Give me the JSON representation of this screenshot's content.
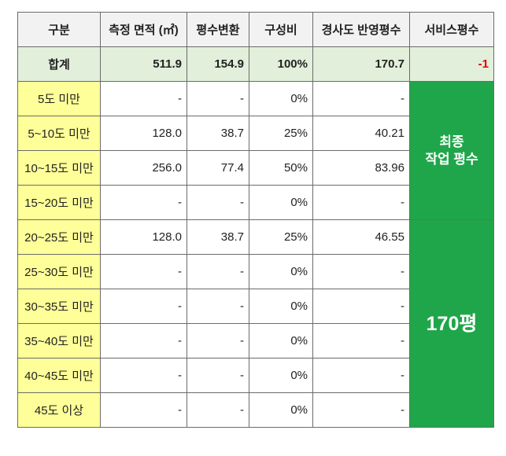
{
  "table": {
    "header": [
      "구분",
      "측정 면적 (㎡)",
      "평수변환",
      "구성비",
      "경사도 반영평수",
      "서비스평수"
    ],
    "total": [
      "합계",
      "511.9",
      "154.9",
      "100%",
      "170.7",
      "-1"
    ],
    "rows": [
      [
        "5도 미만",
        "-",
        "-",
        "0%",
        "-"
      ],
      [
        "5~10도 미만",
        "128.0",
        "38.7",
        "25%",
        "40.21"
      ],
      [
        "10~15도 미만",
        "256.0",
        "77.4",
        "50%",
        "83.96"
      ],
      [
        "15~20도 미만",
        "-",
        "-",
        "0%",
        "-"
      ],
      [
        "20~25도 미만",
        "128.0",
        "38.7",
        "25%",
        "46.55"
      ],
      [
        "25~30도 미만",
        "-",
        "-",
        "0%",
        "-"
      ],
      [
        "30~35도 미만",
        "-",
        "-",
        "0%",
        "-"
      ],
      [
        "35~40도 미만",
        "-",
        "-",
        "0%",
        "-"
      ],
      [
        "40~45도 미만",
        "-",
        "-",
        "0%",
        "-"
      ],
      [
        "45도 이상",
        "-",
        "-",
        "0%",
        "-"
      ]
    ],
    "side": [
      {
        "lines": [
          "최종",
          "작업 평수"
        ]
      },
      {
        "lines": [
          "170평"
        ]
      }
    ]
  }
}
